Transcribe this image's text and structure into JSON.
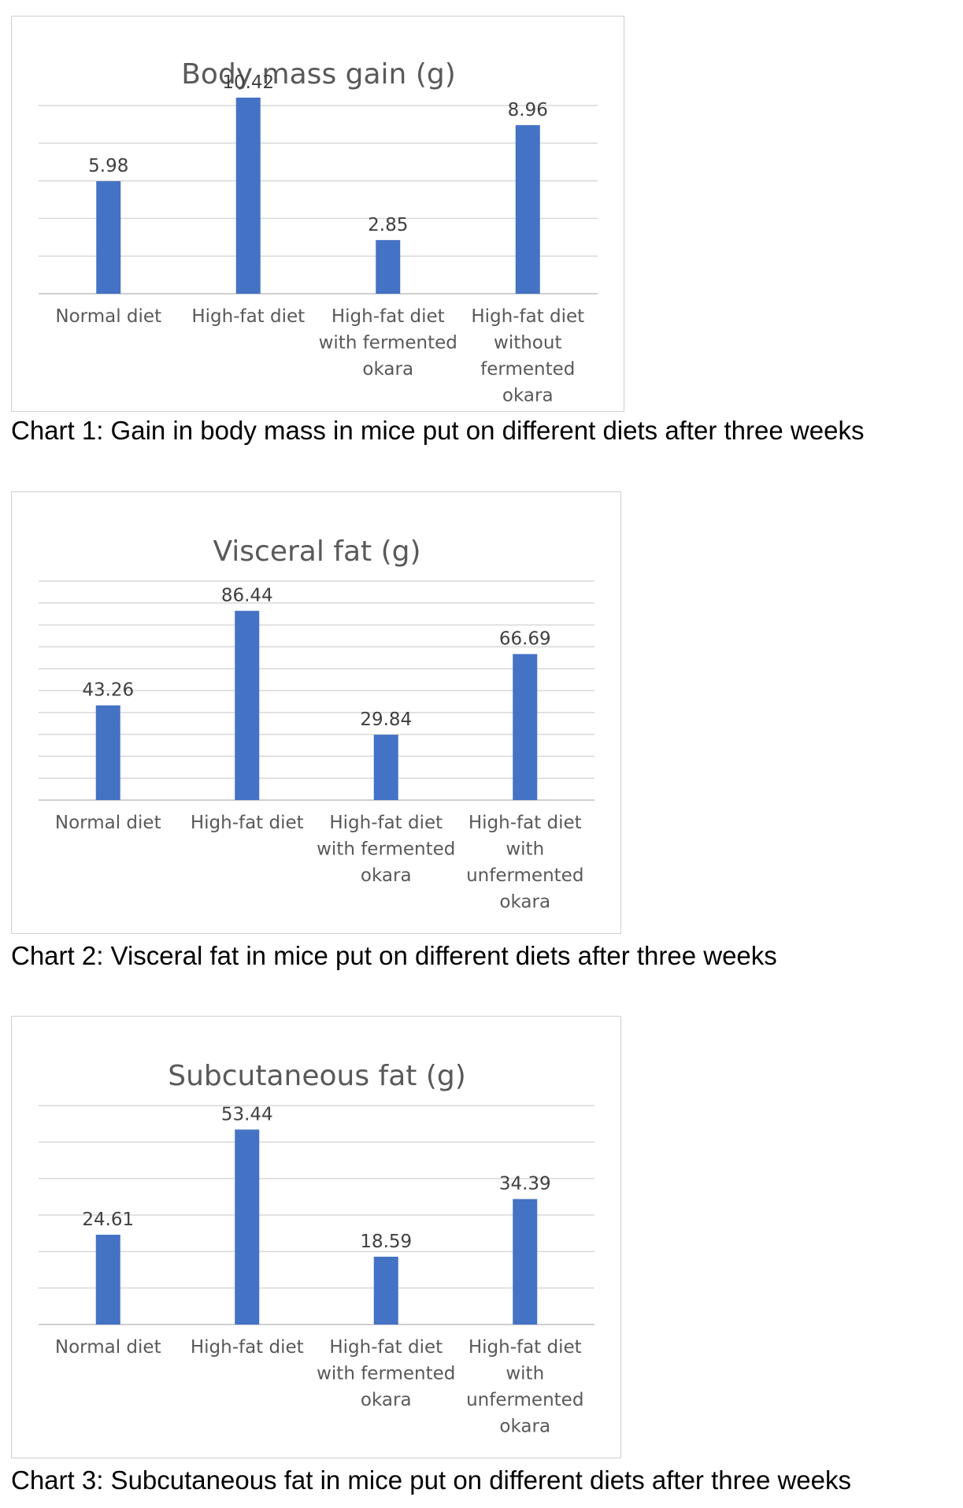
{
  "chart_data": [
    {
      "type": "bar",
      "title": "Body mass gain (g)",
      "categories": [
        [
          "Normal diet"
        ],
        [
          "High-fat diet"
        ],
        [
          "High-fat diet",
          "with fermented",
          "okara"
        ],
        [
          "High-fat diet",
          "without",
          "fermented",
          "okara"
        ]
      ],
      "values": [
        5.98,
        10.42,
        2.85,
        8.96
      ],
      "value_labels": [
        "5.98",
        "10.42",
        "2.85",
        "8.96"
      ],
      "ylim": [
        0,
        10
      ],
      "gridline_step": 2,
      "grid": true,
      "bar_color": "#4472C4",
      "caption": "Chart 1: Gain in body mass in mice put on different diets after three weeks"
    },
    {
      "type": "bar",
      "title": "Visceral fat (g)",
      "categories": [
        [
          "Normal diet"
        ],
        [
          "High-fat diet"
        ],
        [
          "High-fat diet",
          "with fermented",
          "okara"
        ],
        [
          "High-fat diet",
          "with",
          "unfermented",
          "okara"
        ]
      ],
      "values": [
        43.26,
        86.44,
        29.84,
        66.69
      ],
      "value_labels": [
        "43.26",
        "86.44",
        "29.84",
        "66.69"
      ],
      "ylim": [
        0,
        100
      ],
      "gridline_step": 10,
      "grid": true,
      "bar_color": "#4472C4",
      "caption": "Chart 2: Visceral fat in mice put on different diets after three weeks"
    },
    {
      "type": "bar",
      "title": "Subcutaneous fat (g)",
      "categories": [
        [
          "Normal diet"
        ],
        [
          "High-fat diet"
        ],
        [
          "High-fat diet",
          "with fermented",
          "okara"
        ],
        [
          "High-fat diet",
          "with",
          "unfermented",
          "okara"
        ]
      ],
      "values": [
        24.61,
        53.44,
        18.59,
        34.39
      ],
      "value_labels": [
        "24.61",
        "53.44",
        "18.59",
        "34.39"
      ],
      "ylim": [
        0,
        60
      ],
      "gridline_step": 10,
      "grid": true,
      "bar_color": "#4472C4",
      "caption": "Chart 3: Subcutaneous fat in mice put on different diets after three weeks"
    }
  ]
}
